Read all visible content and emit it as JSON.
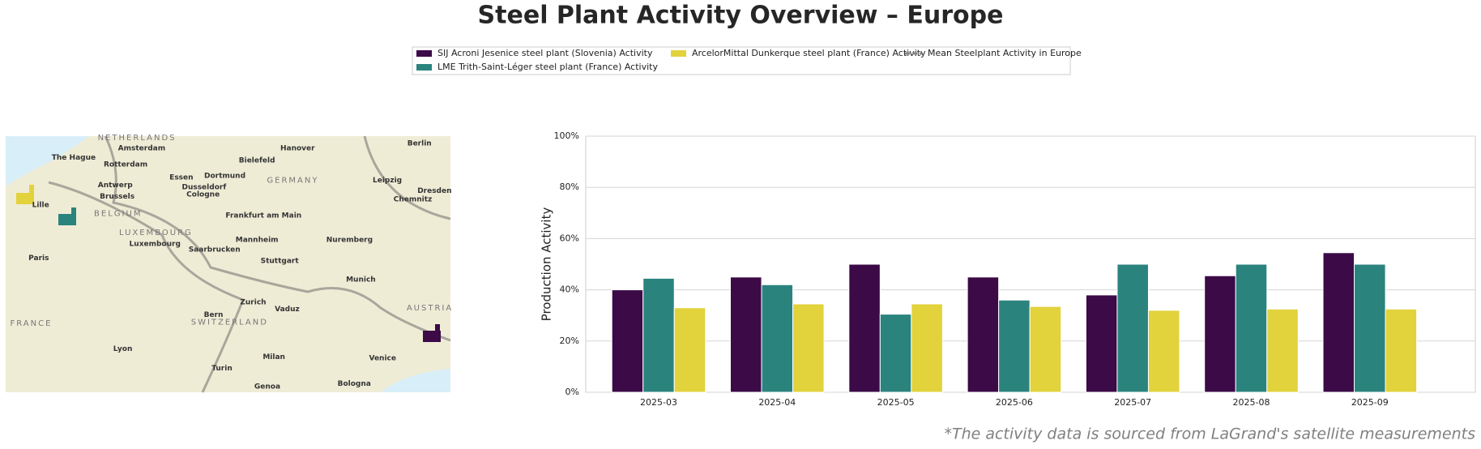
{
  "chart_data": {
    "type": "bar",
    "title": "Steel Plant Activity Overview – Europe",
    "ylabel": "Production Activity",
    "footnote": "*The activity data is sourced from LaGrand's satellite measurements",
    "categories": [
      "2025-03",
      "2025-04",
      "2025-05",
      "2025-06",
      "2025-07",
      "2025-08",
      "2025-09"
    ],
    "series": [
      {
        "name": "SIJ Acroni Jesenice steel plant (Slovenia) Activity",
        "color": "#3b0a47",
        "values": [
          40,
          45,
          50,
          45,
          38,
          45.5,
          54.5
        ]
      },
      {
        "name": "LME Trith-Saint-Léger steel plant (France) Activity",
        "color": "#2b837e",
        "values": [
          44.5,
          42,
          30.5,
          36,
          50,
          50,
          50
        ]
      },
      {
        "name": "ArcelorMittal Dunkerque steel plant (France) Activity",
        "color": "#e2d23c",
        "values": [
          33,
          34.5,
          34.5,
          33.5,
          32,
          32.5,
          32.5
        ]
      }
    ],
    "mean_legend": {
      "name": "Mean Steelplant Activity in Europe",
      "color": "#888888"
    },
    "ylim": [
      0,
      100
    ],
    "yticks": [
      {
        "value": 0,
        "label": "0%"
      },
      {
        "value": 20,
        "label": "20%"
      },
      {
        "value": 40,
        "label": "40%"
      },
      {
        "value": 60,
        "label": "60%"
      },
      {
        "value": 80,
        "label": "80%"
      },
      {
        "value": 100,
        "label": "100%"
      }
    ],
    "grid": true,
    "map_labels": [
      "NETHERLANDS",
      "Amsterdam",
      "The Hague",
      "Rotterdam",
      "Antwerp",
      "Brussels",
      "BELGIUM",
      "Lille",
      "Paris",
      "LUXEMBOURG",
      "Luxembourg",
      "Essen",
      "Dortmund",
      "Dusseldorf",
      "Cologne",
      "Bielefeld",
      "Hanover",
      "GERMANY",
      "Berlin",
      "Leipzig",
      "Dresden",
      "Chemnitz",
      "Frankfurt am Main",
      "Mannheim",
      "Saarbrucken",
      "Stuttgart",
      "Nuremberg",
      "Munich",
      "Zurich",
      "Vaduz",
      "Bern",
      "SWITZERLAND",
      "FRANCE",
      "AUSTRIA",
      "Lyon",
      "Turin",
      "Milan",
      "Venice",
      "Genoa",
      "Bologna"
    ]
  }
}
